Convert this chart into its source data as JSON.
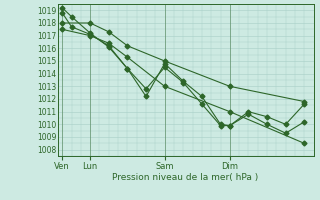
{
  "xlabel": "Pression niveau de la mer( hPa )",
  "ylim": [
    1007.5,
    1019.5
  ],
  "yticks": [
    1008,
    1009,
    1010,
    1011,
    1012,
    1013,
    1014,
    1015,
    1016,
    1017,
    1018,
    1019
  ],
  "xtick_labels": [
    "Ven",
    "Lun",
    "Sam",
    "Dim"
  ],
  "bg_color": "#cdeae2",
  "grid_color": "#a8cfc7",
  "line_color": "#2d6629",
  "lines": [
    {
      "x": [
        0,
        1,
        3,
        5,
        7,
        9,
        11,
        13,
        15,
        17,
        18,
        20,
        22,
        24,
        26
      ],
      "y": [
        1019.2,
        1018.5,
        1017.2,
        1016.1,
        1014.4,
        1012.2,
        1014.8,
        1013.4,
        1012.2,
        1010.0,
        1009.9,
        1011.0,
        1010.6,
        1010.0,
        1011.6
      ]
    },
    {
      "x": [
        0,
        1,
        3,
        5,
        7,
        9,
        11,
        13,
        15,
        17,
        18,
        20,
        22,
        24,
        26
      ],
      "y": [
        1018.8,
        1017.7,
        1017.1,
        1016.2,
        1014.4,
        1012.8,
        1014.5,
        1013.3,
        1011.6,
        1009.9,
        1009.9,
        1010.8,
        1010.0,
        1009.3,
        1010.2
      ]
    },
    {
      "x": [
        0,
        3,
        5,
        7,
        11,
        18,
        26
      ],
      "y": [
        1018.0,
        1018.0,
        1017.3,
        1016.2,
        1015.0,
        1013.0,
        1011.8
      ]
    },
    {
      "x": [
        0,
        3,
        5,
        7,
        11,
        18,
        26
      ],
      "y": [
        1017.5,
        1017.0,
        1016.4,
        1015.3,
        1013.0,
        1011.0,
        1008.5
      ]
    }
  ],
  "xtick_positions": [
    0,
    3,
    11,
    18
  ],
  "vline_positions": [
    0,
    3,
    11,
    18
  ],
  "xlim": [
    -0.5,
    27
  ]
}
